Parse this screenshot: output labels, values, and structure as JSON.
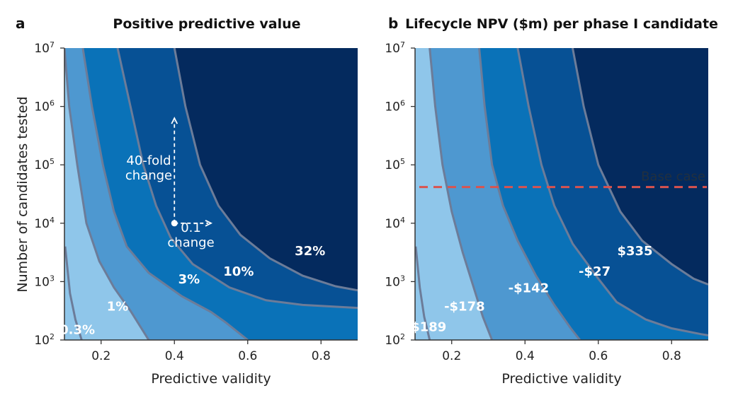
{
  "colors": {
    "fills": [
      "#8fc6ea",
      "#4e98d0",
      "#0a72b8",
      "#075195",
      "#042a5e"
    ],
    "contour": "#6c7c99",
    "base_line": "#d9534f"
  },
  "chart_data": [
    {
      "type": "contour",
      "panel": "a",
      "title": "Positive predictive value",
      "xlabel": "Predictive validity",
      "ylabel": "Number of candidates tested",
      "xlim": [
        0.1,
        0.9
      ],
      "ylim": [
        100,
        10000000
      ],
      "yscale": "log",
      "xticks": [
        "0.2",
        "0.4",
        "0.6",
        "0.8"
      ],
      "yticks_base": "10",
      "yticks_exp": [
        "2",
        "3",
        "4",
        "5",
        "6",
        "7"
      ],
      "contours": [
        {
          "name": "c1",
          "points": [
            [
              0.102,
              3.6
            ],
            [
              0.115,
              2.8
            ],
            [
              0.13,
              2.35
            ],
            [
              0.147,
              2.0
            ]
          ]
        },
        {
          "name": "c2",
          "points": [
            [
              0.1,
              7.0
            ],
            [
              0.113,
              6.0
            ],
            [
              0.135,
              5.0
            ],
            [
              0.16,
              4.0
            ],
            [
              0.195,
              3.35
            ],
            [
              0.235,
              2.9
            ],
            [
              0.28,
              2.5
            ],
            [
              0.33,
              2.0
            ]
          ]
        },
        {
          "name": "c3",
          "points": [
            [
              0.15,
              7.0
            ],
            [
              0.175,
              6.0
            ],
            [
              0.205,
              5.0
            ],
            [
              0.235,
              4.2
            ],
            [
              0.27,
              3.6
            ],
            [
              0.33,
              3.15
            ],
            [
              0.42,
              2.75
            ],
            [
              0.5,
              2.48
            ],
            [
              0.54,
              2.3
            ],
            [
              0.6,
              2.0
            ]
          ]
        },
        {
          "name": "c4",
          "points": [
            [
              0.245,
              7.0
            ],
            [
              0.28,
              6.0
            ],
            [
              0.315,
              5.0
            ],
            [
              0.35,
              4.3
            ],
            [
              0.39,
              3.75
            ],
            [
              0.45,
              3.3
            ],
            [
              0.55,
              2.9
            ],
            [
              0.65,
              2.68
            ],
            [
              0.75,
              2.6
            ],
            [
              0.9,
              2.55
            ]
          ]
        },
        {
          "name": "c5",
          "points": [
            [
              0.4,
              7.0
            ],
            [
              0.43,
              6.0
            ],
            [
              0.47,
              5.0
            ],
            [
              0.52,
              4.3
            ],
            [
              0.58,
              3.8
            ],
            [
              0.66,
              3.4
            ],
            [
              0.75,
              3.1
            ],
            [
              0.84,
              2.92
            ],
            [
              0.9,
              2.85
            ]
          ]
        }
      ],
      "region_labels": [
        {
          "label": "0.3%",
          "x": 0.135,
          "y": 2.1
        },
        {
          "label": "1%",
          "x": 0.245,
          "y": 2.5
        },
        {
          "label": "3%",
          "x": 0.44,
          "y": 2.97
        },
        {
          "label": "10%",
          "x": 0.575,
          "y": 3.1
        },
        {
          "label": "32%",
          "x": 0.77,
          "y": 3.45
        }
      ],
      "annotation": {
        "dot": {
          "x": 0.4,
          "y": 4.0
        },
        "v_arrow_to_y": 5.8,
        "h_arrow_to_x": 0.5,
        "v_text": [
          "40-fold",
          "change"
        ],
        "v_text_pos": {
          "x": 0.33,
          "y": 5.0
        },
        "h_text": [
          "0.1",
          "change"
        ],
        "h_text_pos": {
          "x": 0.445,
          "y": 3.85
        }
      }
    },
    {
      "type": "contour",
      "panel": "b",
      "title": "Lifecycle NPV ($m) per phase I candidate",
      "xlabel": "Predictive validity",
      "ylabel": "",
      "xlim": [
        0.1,
        0.9
      ],
      "ylim": [
        100,
        10000000
      ],
      "yscale": "log",
      "xticks": [
        "0.2",
        "0.4",
        "0.6",
        "0.8"
      ],
      "yticks_base": "10",
      "yticks_exp": [
        "2",
        "3",
        "4",
        "5",
        "6",
        "7"
      ],
      "contours": [
        {
          "name": "c1",
          "points": [
            [
              0.102,
              3.6
            ],
            [
              0.113,
              2.9
            ],
            [
              0.125,
              2.4
            ],
            [
              0.14,
              2.0
            ]
          ]
        },
        {
          "name": "c2",
          "points": [
            [
              0.14,
              7.0
            ],
            [
              0.155,
              6.0
            ],
            [
              0.175,
              5.0
            ],
            [
              0.2,
              4.2
            ],
            [
              0.23,
              3.5
            ],
            [
              0.26,
              2.9
            ],
            [
              0.285,
              2.4
            ],
            [
              0.31,
              2.0
            ]
          ]
        },
        {
          "name": "c3",
          "points": [
            [
              0.275,
              7.0
            ],
            [
              0.29,
              6.0
            ],
            [
              0.31,
              5.0
            ],
            [
              0.34,
              4.3
            ],
            [
              0.38,
              3.7
            ],
            [
              0.43,
              3.1
            ],
            [
              0.48,
              2.6
            ],
            [
              0.525,
              2.2
            ],
            [
              0.55,
              2.0
            ]
          ]
        },
        {
          "name": "c4",
          "points": [
            [
              0.38,
              7.0
            ],
            [
              0.41,
              6.0
            ],
            [
              0.445,
              5.0
            ],
            [
              0.48,
              4.3
            ],
            [
              0.53,
              3.65
            ],
            [
              0.6,
              3.05
            ],
            [
              0.65,
              2.65
            ],
            [
              0.73,
              2.35
            ],
            [
              0.8,
              2.2
            ],
            [
              0.88,
              2.1
            ],
            [
              0.9,
              2.08
            ]
          ]
        },
        {
          "name": "c5",
          "points": [
            [
              0.53,
              7.0
            ],
            [
              0.56,
              6.0
            ],
            [
              0.6,
              5.0
            ],
            [
              0.66,
              4.2
            ],
            [
              0.72,
              3.7
            ],
            [
              0.8,
              3.3
            ],
            [
              0.86,
              3.05
            ],
            [
              0.9,
              2.95
            ]
          ]
        }
      ],
      "region_labels": [
        {
          "label": "-$189",
          "x": 0.13,
          "y": 2.15
        },
        {
          "label": "-$178",
          "x": 0.235,
          "y": 2.5
        },
        {
          "label": "-$142",
          "x": 0.41,
          "y": 2.82
        },
        {
          "label": "-$27",
          "x": 0.59,
          "y": 3.1
        },
        {
          "label": "$335",
          "x": 0.7,
          "y": 3.45
        }
      ],
      "base_case": {
        "label": "Base case",
        "y": 4.62
      }
    }
  ]
}
